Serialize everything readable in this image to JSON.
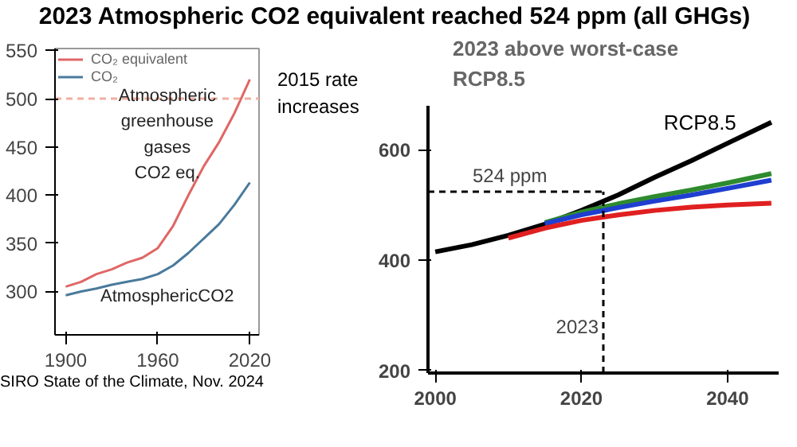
{
  "chart_data": [
    {
      "type": "line",
      "title": "2023 Atmospheric CO2 equivalent reached 524 ppm (all GHGs)",
      "xlim": [
        1893,
        2026
      ],
      "xticks": [
        1900,
        1960,
        2020
      ],
      "ylim": [
        255,
        552
      ],
      "yticks": [
        300,
        350,
        400,
        450,
        500,
        550
      ],
      "grid": false,
      "legend": "top left",
      "series": [
        {
          "name": "CO₂ equivalent",
          "color": "#e06666",
          "x": [
            1900,
            1910,
            1920,
            1930,
            1940,
            1950,
            1960,
            1970,
            1980,
            1990,
            2000,
            2010,
            2020
          ],
          "values": [
            305,
            310,
            318,
            323,
            330,
            335,
            345,
            368,
            400,
            430,
            455,
            485,
            520
          ]
        },
        {
          "name": "CO₂",
          "color": "#4a7a9c",
          "x": [
            1900,
            1910,
            1920,
            1930,
            1940,
            1950,
            1960,
            1970,
            1980,
            1990,
            2000,
            2010,
            2020
          ],
          "values": [
            296,
            300,
            303,
            307,
            310,
            313,
            318,
            327,
            340,
            355,
            370,
            390,
            413
          ]
        }
      ],
      "ref_lines": [
        {
          "axis": "y",
          "value": 500,
          "color": "#f0b0a0",
          "line_style": "dashed"
        }
      ],
      "annotations": [
        "Atmospheric",
        "greenhouse",
        "gases",
        "CO2 eq.",
        "AtmosphericCO2",
        "2015 rate increases",
        "SIRO State of the Climate, Nov. 2024"
      ]
    },
    {
      "type": "line",
      "xlim": [
        1999,
        2047
      ],
      "xticks": [
        2000,
        2020,
        2040
      ],
      "ylim": [
        195,
        680
      ],
      "yticks": [
        200,
        400,
        600
      ],
      "grid": false,
      "legend": false,
      "series": [
        {
          "name": "RCP8.5",
          "color": "#000000",
          "x": [
            2000,
            2005,
            2010,
            2015,
            2020,
            2025,
            2030,
            2035,
            2040,
            2046
          ],
          "values": [
            415,
            428,
            445,
            465,
            490,
            518,
            550,
            580,
            612,
            650
          ]
        },
        {
          "color": "#2e8b2e",
          "x": [
            2015,
            2020,
            2025,
            2030,
            2035,
            2040,
            2046
          ],
          "values": [
            468,
            487,
            502,
            515,
            527,
            540,
            557
          ]
        },
        {
          "color": "#1f3fd0",
          "x": [
            2015,
            2020,
            2025,
            2030,
            2035,
            2040,
            2046
          ],
          "values": [
            466,
            482,
            495,
            507,
            518,
            530,
            545
          ]
        },
        {
          "color": "#e02020",
          "x": [
            2010,
            2015,
            2020,
            2025,
            2030,
            2035,
            2040,
            2046
          ],
          "values": [
            440,
            458,
            472,
            482,
            490,
            496,
            500,
            503
          ]
        }
      ],
      "ref_lines": [
        {
          "axis": "y",
          "value": 524,
          "label": "524 ppm",
          "color": "#000000",
          "line_style": "dashed"
        },
        {
          "axis": "x",
          "value": 2023,
          "label": "2023",
          "color": "#000000",
          "line_style": "dashed"
        }
      ],
      "annotations": [
        "2023 above worst-case RCP8.5"
      ]
    }
  ]
}
